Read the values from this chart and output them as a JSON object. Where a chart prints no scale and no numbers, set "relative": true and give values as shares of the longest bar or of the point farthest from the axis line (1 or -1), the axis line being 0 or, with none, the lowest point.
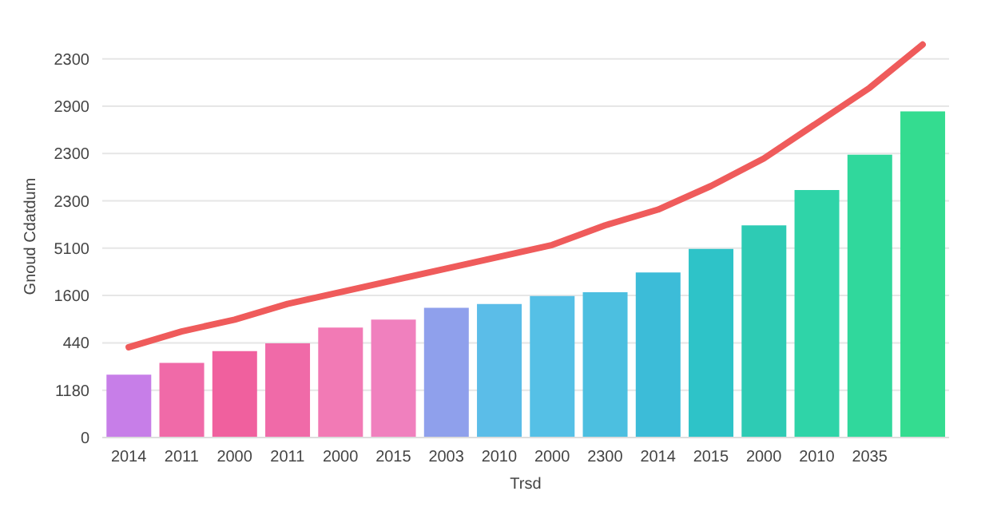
{
  "chart_data": {
    "type": "bar",
    "xlabel": "Trsd",
    "ylabel": "Gnoud Cdatdum",
    "relative": true,
    "categories": [
      "2014",
      "2011",
      "2000",
      "2011",
      "2000",
      "2015",
      "2003",
      "2010",
      "2000",
      "2300",
      "2014",
      "2015",
      "2000",
      "2010",
      "2035",
      null
    ],
    "series": [
      {
        "colors": [
          "#c77ee8",
          "#f06aa8",
          "#f0609e",
          "#f06aa8",
          "#f27ab5",
          "#f080be",
          "#8fa0ec",
          "#5bbde8",
          "#55c0e6",
          "#4cbfe0",
          "#3cbcd8",
          "#2ec3c8",
          "#2ecbb4",
          "#2fd4a8",
          "#30d89c",
          "#34dc90"
        ],
        "values": [
          0.16,
          0.19,
          0.22,
          0.24,
          0.28,
          0.3,
          0.33,
          0.34,
          0.36,
          0.37,
          0.42,
          0.48,
          0.54,
          0.63,
          0.72,
          0.83
        ]
      },
      {
        "type": "line",
        "color": "#ef5b5b",
        "values": [
          0.23,
          0.27,
          0.3,
          0.34,
          0.37,
          0.4,
          0.43,
          0.46,
          0.49,
          0.54,
          0.58,
          0.64,
          0.71,
          0.8,
          0.89,
          1
        ]
      }
    ],
    "annotations": [
      "2300",
      "2900",
      "2300",
      "2300",
      "5100",
      "1600",
      "440",
      "1180",
      "0"
    ]
  }
}
